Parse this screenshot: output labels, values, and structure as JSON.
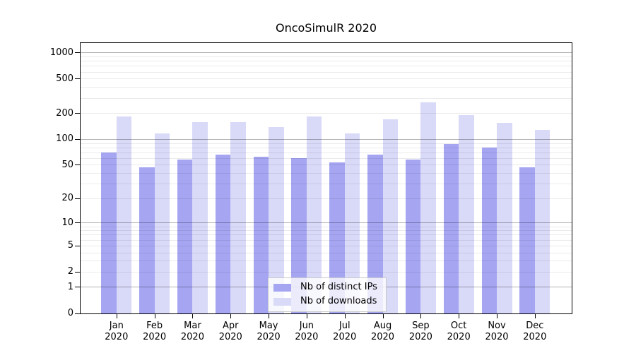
{
  "chart_data": {
    "type": "bar",
    "title": "OncoSimulR 2020",
    "categories": [
      "Jan",
      "Feb",
      "Mar",
      "Apr",
      "May",
      "Jun",
      "Jul",
      "Aug",
      "Sep",
      "Oct",
      "Nov",
      "Dec"
    ],
    "category_year": "2020",
    "series": [
      {
        "name": "Nb of distinct IPs",
        "color": "#a5a5f2",
        "values": [
          70,
          47,
          58,
          67,
          63,
          60,
          54,
          66,
          58,
          88,
          80,
          47
        ]
      },
      {
        "name": "Nb of downloads",
        "color": "#d9d9f8",
        "values": [
          185,
          117,
          160,
          160,
          139,
          185,
          117,
          171,
          267,
          192,
          156,
          129
        ]
      }
    ],
    "xlabel": "",
    "ylabel": "",
    "y_scale": "log10(1+x)",
    "y_ticks": [
      0,
      1,
      2,
      5,
      10,
      20,
      50,
      100,
      200,
      500,
      1000
    ],
    "ylim": [
      0,
      1300
    ],
    "grid": true,
    "legend_position": "bottom-center"
  }
}
